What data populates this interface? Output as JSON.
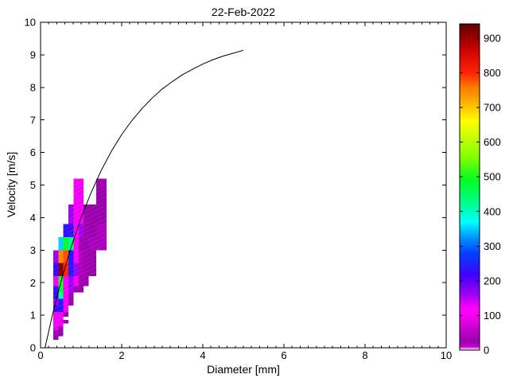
{
  "chart_data": {
    "type": "heatmap",
    "title": "22-Feb-2022",
    "xlabel": "Diameter [mm]",
    "ylabel": "Velocity [m/s]",
    "xlim": [
      0,
      10
    ],
    "ylim": [
      0,
      10
    ],
    "xticks": [
      0,
      2,
      4,
      6,
      8,
      10
    ],
    "yticks": [
      0,
      1,
      2,
      3,
      4,
      5,
      6,
      7,
      8,
      9,
      10
    ],
    "x_minor_step": 0.2,
    "grid": false,
    "colorbar": {
      "position": "right",
      "vmin": 0,
      "vmax": 941,
      "ticks": [
        0,
        100,
        200,
        300,
        400,
        500,
        600,
        700,
        800,
        900
      ],
      "colormap_stops": [
        [
          0,
          "#ffffff"
        ],
        [
          10,
          "#c800d2"
        ],
        [
          25,
          "#9b00ad"
        ],
        [
          60,
          "#c400cf"
        ],
        [
          90,
          "#ee00ee"
        ],
        [
          120,
          "#ff00ff"
        ],
        [
          160,
          "#a000f0"
        ],
        [
          215,
          "#4000ff"
        ],
        [
          280,
          "#0040ff"
        ],
        [
          330,
          "#00a0ff"
        ],
        [
          370,
          "#00ffff"
        ],
        [
          430,
          "#00ff80"
        ],
        [
          490,
          "#00ff22"
        ],
        [
          560,
          "#88ff00"
        ],
        [
          620,
          "#ccff00"
        ],
        [
          660,
          "#ffff00"
        ],
        [
          720,
          "#ffaa00"
        ],
        [
          760,
          "#ff7700"
        ],
        [
          800,
          "#ff2200"
        ],
        [
          870,
          "#c80000"
        ],
        [
          941,
          "#5e0000"
        ]
      ]
    },
    "cells": [
      {
        "d": [
          0.812,
          0.937
        ],
        "v": [
          4.4,
          5.2
        ],
        "value": 100
      },
      {
        "d": [
          0.937,
          1.062
        ],
        "v": [
          4.4,
          5.2
        ],
        "value": 100
      },
      {
        "d": [
          1.375,
          1.625
        ],
        "v": [
          4.4,
          5.2
        ],
        "value": 25
      },
      {
        "d": [
          0.687,
          0.812
        ],
        "v": [
          3.8,
          4.4
        ],
        "value": 160
      },
      {
        "d": [
          0.812,
          0.937
        ],
        "v": [
          3.8,
          4.4
        ],
        "value": 110
      },
      {
        "d": [
          0.937,
          1.062
        ],
        "v": [
          3.8,
          4.4
        ],
        "value": 100
      },
      {
        "d": [
          1.062,
          1.187
        ],
        "v": [
          3.8,
          4.4
        ],
        "value": 30
      },
      {
        "d": [
          1.187,
          1.375
        ],
        "v": [
          3.8,
          4.4
        ],
        "value": 25
      },
      {
        "d": [
          1.375,
          1.625
        ],
        "v": [
          3.8,
          4.4
        ],
        "value": 25
      },
      {
        "d": [
          0.562,
          0.687
        ],
        "v": [
          3.4,
          3.8
        ],
        "value": 230
      },
      {
        "d": [
          0.687,
          0.812
        ],
        "v": [
          3.4,
          3.8
        ],
        "value": 230
      },
      {
        "d": [
          0.812,
          0.937
        ],
        "v": [
          3.4,
          3.8
        ],
        "value": 110
      },
      {
        "d": [
          0.937,
          1.062
        ],
        "v": [
          3.4,
          3.8
        ],
        "value": 160
      },
      {
        "d": [
          1.062,
          1.187
        ],
        "v": [
          3.4,
          3.8
        ],
        "value": 30
      },
      {
        "d": [
          1.187,
          1.375
        ],
        "v": [
          3.4,
          3.8
        ],
        "value": 25
      },
      {
        "d": [
          1.375,
          1.625
        ],
        "v": [
          3.4,
          3.8
        ],
        "value": 20
      },
      {
        "d": [
          0.437,
          0.562
        ],
        "v": [
          3.0,
          3.4
        ],
        "value": 350
      },
      {
        "d": [
          0.562,
          0.687
        ],
        "v": [
          3.0,
          3.4
        ],
        "value": 480
      },
      {
        "d": [
          0.687,
          0.812
        ],
        "v": [
          3.0,
          3.4
        ],
        "value": 430
      },
      {
        "d": [
          0.812,
          0.937
        ],
        "v": [
          3.0,
          3.4
        ],
        "value": 100
      },
      {
        "d": [
          0.937,
          1.062
        ],
        "v": [
          3.0,
          3.4
        ],
        "value": 30
      },
      {
        "d": [
          1.062,
          1.187
        ],
        "v": [
          3.0,
          3.4
        ],
        "value": 25
      },
      {
        "d": [
          1.187,
          1.375
        ],
        "v": [
          3.0,
          3.4
        ],
        "value": 20
      },
      {
        "d": [
          1.375,
          1.625
        ],
        "v": [
          3.0,
          3.4
        ],
        "value": 20
      },
      {
        "d": [
          0.312,
          0.437
        ],
        "v": [
          2.6,
          3.0
        ],
        "value": 160
      },
      {
        "d": [
          0.437,
          0.562
        ],
        "v": [
          2.6,
          3.0
        ],
        "value": 750
      },
      {
        "d": [
          0.562,
          0.687
        ],
        "v": [
          2.6,
          3.0
        ],
        "value": 780
      },
      {
        "d": [
          0.687,
          0.812
        ],
        "v": [
          2.6,
          3.0
        ],
        "value": 230
      },
      {
        "d": [
          0.812,
          0.937
        ],
        "v": [
          2.6,
          3.0
        ],
        "value": 110
      },
      {
        "d": [
          0.937,
          1.062
        ],
        "v": [
          2.6,
          3.0
        ],
        "value": 40
      },
      {
        "d": [
          1.062,
          1.187
        ],
        "v": [
          2.6,
          3.0
        ],
        "value": 30
      },
      {
        "d": [
          1.187,
          1.375
        ],
        "v": [
          2.6,
          3.0
        ],
        "value": 25
      },
      {
        "d": [
          0.312,
          0.437
        ],
        "v": [
          2.2,
          2.6
        ],
        "value": 215
      },
      {
        "d": [
          0.437,
          0.562
        ],
        "v": [
          2.2,
          2.6
        ],
        "value": 920
      },
      {
        "d": [
          0.562,
          0.687
        ],
        "v": [
          2.2,
          2.6
        ],
        "value": 800
      },
      {
        "d": [
          0.687,
          0.812
        ],
        "v": [
          2.2,
          2.6
        ],
        "value": 240
      },
      {
        "d": [
          0.812,
          0.937
        ],
        "v": [
          2.2,
          2.6
        ],
        "value": 160
      },
      {
        "d": [
          0.937,
          1.062
        ],
        "v": [
          2.2,
          2.6
        ],
        "value": 40
      },
      {
        "d": [
          1.062,
          1.187
        ],
        "v": [
          2.2,
          2.6
        ],
        "value": 30
      },
      {
        "d": [
          1.187,
          1.375
        ],
        "v": [
          2.2,
          2.6
        ],
        "value": 25
      },
      {
        "d": [
          0.312,
          0.437
        ],
        "v": [
          1.9,
          2.2
        ],
        "value": 100
      },
      {
        "d": [
          0.437,
          0.562
        ],
        "v": [
          1.9,
          2.2
        ],
        "value": 500
      },
      {
        "d": [
          0.562,
          0.687
        ],
        "v": [
          1.9,
          2.2
        ],
        "value": 110
      },
      {
        "d": [
          0.687,
          0.812
        ],
        "v": [
          1.9,
          2.2
        ],
        "value": 160
      },
      {
        "d": [
          0.812,
          0.937
        ],
        "v": [
          1.9,
          2.2
        ],
        "value": 100
      },
      {
        "d": [
          0.937,
          1.062
        ],
        "v": [
          1.9,
          2.2
        ],
        "value": 30
      },
      {
        "d": [
          1.062,
          1.187
        ],
        "v": [
          1.9,
          2.2
        ],
        "value": 25
      },
      {
        "d": [
          0.312,
          0.437
        ],
        "v": [
          1.7,
          1.9
        ],
        "value": 230
      },
      {
        "d": [
          0.437,
          0.562
        ],
        "v": [
          1.7,
          1.9
        ],
        "value": 480
      },
      {
        "d": [
          0.562,
          0.687
        ],
        "v": [
          1.7,
          1.9
        ],
        "value": 110
      },
      {
        "d": [
          0.687,
          0.812
        ],
        "v": [
          1.7,
          1.9
        ],
        "value": 160
      },
      {
        "d": [
          0.812,
          0.937
        ],
        "v": [
          1.7,
          1.9
        ],
        "value": 30
      },
      {
        "d": [
          0.937,
          1.062
        ],
        "v": [
          1.7,
          1.9
        ],
        "value": 25
      },
      {
        "d": [
          0.312,
          0.437
        ],
        "v": [
          1.5,
          1.7
        ],
        "value": 215
      },
      {
        "d": [
          0.437,
          0.562
        ],
        "v": [
          1.5,
          1.7
        ],
        "value": 420
      },
      {
        "d": [
          0.562,
          0.687
        ],
        "v": [
          1.5,
          1.7
        ],
        "value": 100
      },
      {
        "d": [
          0.687,
          0.812
        ],
        "v": [
          1.5,
          1.7
        ],
        "value": 30
      },
      {
        "d": [
          0.312,
          0.437
        ],
        "v": [
          1.3,
          1.5
        ],
        "value": 160
      },
      {
        "d": [
          0.437,
          0.562
        ],
        "v": [
          1.3,
          1.5
        ],
        "value": 240
      },
      {
        "d": [
          0.562,
          0.687
        ],
        "v": [
          1.3,
          1.5
        ],
        "value": 100
      },
      {
        "d": [
          0.687,
          0.812
        ],
        "v": [
          1.3,
          1.5
        ],
        "value": 25
      },
      {
        "d": [
          0.312,
          0.437
        ],
        "v": [
          1.1,
          1.3
        ],
        "value": 230
      },
      {
        "d": [
          0.437,
          0.562
        ],
        "v": [
          1.1,
          1.3
        ],
        "value": 230
      },
      {
        "d": [
          0.562,
          0.687
        ],
        "v": [
          1.1,
          1.3
        ],
        "value": 100
      },
      {
        "d": [
          0.312,
          0.437
        ],
        "v": [
          0.95,
          1.1
        ],
        "value": 100
      },
      {
        "d": [
          0.437,
          0.562
        ],
        "v": [
          0.95,
          1.1
        ],
        "value": 100
      },
      {
        "d": [
          0.562,
          0.687
        ],
        "v": [
          0.95,
          1.1
        ],
        "value": 30
      },
      {
        "d": [
          0.312,
          0.437
        ],
        "v": [
          0.85,
          0.95
        ],
        "value": 100
      },
      {
        "d": [
          0.437,
          0.562
        ],
        "v": [
          0.85,
          0.95
        ],
        "value": 100
      },
      {
        "d": [
          0.312,
          0.437
        ],
        "v": [
          0.75,
          0.85
        ],
        "value": 100
      },
      {
        "d": [
          0.437,
          0.562
        ],
        "v": [
          0.75,
          0.85
        ],
        "value": 90
      },
      {
        "d": [
          0.562,
          0.687
        ],
        "v": [
          0.75,
          0.85
        ],
        "value": 25
      },
      {
        "d": [
          0.312,
          0.437
        ],
        "v": [
          0.65,
          0.75
        ],
        "value": 100
      },
      {
        "d": [
          0.437,
          0.562
        ],
        "v": [
          0.65,
          0.75
        ],
        "value": 90
      },
      {
        "d": [
          0.312,
          0.437
        ],
        "v": [
          0.55,
          0.65
        ],
        "value": 90
      },
      {
        "d": [
          0.437,
          0.562
        ],
        "v": [
          0.55,
          0.65
        ],
        "value": 25
      },
      {
        "d": [
          0.312,
          0.437
        ],
        "v": [
          0.45,
          0.55
        ],
        "value": 40
      },
      {
        "d": [
          0.437,
          0.562
        ],
        "v": [
          0.45,
          0.55
        ],
        "value": 25
      },
      {
        "d": [
          0.312,
          0.437
        ],
        "v": [
          0.35,
          0.45
        ],
        "value": 30
      },
      {
        "d": [
          0.437,
          0.562
        ],
        "v": [
          0.35,
          0.45
        ],
        "value": 25
      },
      {
        "d": [
          0.312,
          0.437
        ],
        "v": [
          0.25,
          0.35
        ],
        "value": 25
      }
    ],
    "curve": {
      "points": [
        [
          0.11,
          0.0
        ],
        [
          0.3,
          1.05
        ],
        [
          0.5,
          2.02
        ],
        [
          0.75,
          3.08
        ],
        [
          1.0,
          4.0
        ],
        [
          1.25,
          4.78
        ],
        [
          1.5,
          5.46
        ],
        [
          1.75,
          6.05
        ],
        [
          2.0,
          6.55
        ],
        [
          2.25,
          6.98
        ],
        [
          2.5,
          7.35
        ],
        [
          2.75,
          7.67
        ],
        [
          3.0,
          7.95
        ],
        [
          3.25,
          8.18
        ],
        [
          3.5,
          8.39
        ],
        [
          3.75,
          8.56
        ],
        [
          4.0,
          8.72
        ],
        [
          4.25,
          8.85
        ],
        [
          4.5,
          8.96
        ],
        [
          4.75,
          9.05
        ],
        [
          5.0,
          9.14
        ]
      ]
    }
  }
}
